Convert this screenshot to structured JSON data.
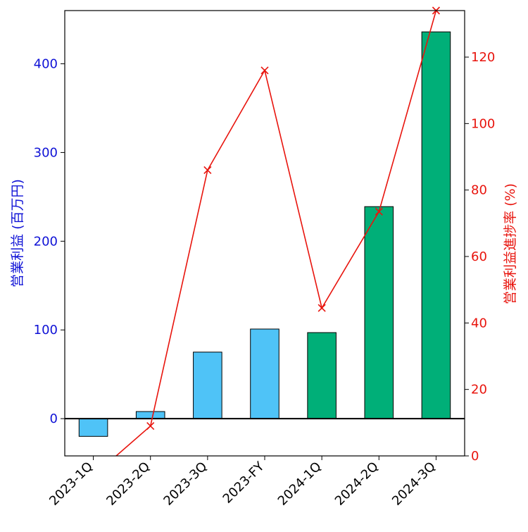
{
  "chart_data": {
    "type": "bar",
    "categories": [
      "2023-1Q",
      "2023-2Q",
      "2023-3Q",
      "2023-FY",
      "2024-1Q",
      "2024-2Q",
      "2024-3Q"
    ],
    "series": [
      {
        "kind": "bar",
        "axis": "left",
        "values": [
          -20,
          8,
          75,
          101,
          97,
          239,
          436
        ],
        "colors": [
          "#4fc3f7",
          "#4fc3f7",
          "#4fc3f7",
          "#4fc3f7",
          "#00af78",
          "#00af78",
          "#00af78"
        ]
      },
      {
        "kind": "line",
        "axis": "right",
        "marker": "x",
        "color": "#e8140d",
        "values": [
          -6,
          9,
          86,
          116,
          44.5,
          73.5,
          134
        ]
      }
    ],
    "ylabel": "営業利益 (百万円)",
    "ylabel_color": "#0f12d6",
    "ylim": [
      -42,
      460
    ],
    "yticks": [
      0,
      100,
      200,
      300,
      400
    ],
    "y2label": "営業利益進捗率 (%)",
    "y2label_color": "#e8140d",
    "y2lim": [
      0,
      134
    ],
    "y2ticks": [
      0,
      20,
      40,
      60,
      80,
      100,
      120
    ],
    "zero_line": true,
    "grid": false
  }
}
